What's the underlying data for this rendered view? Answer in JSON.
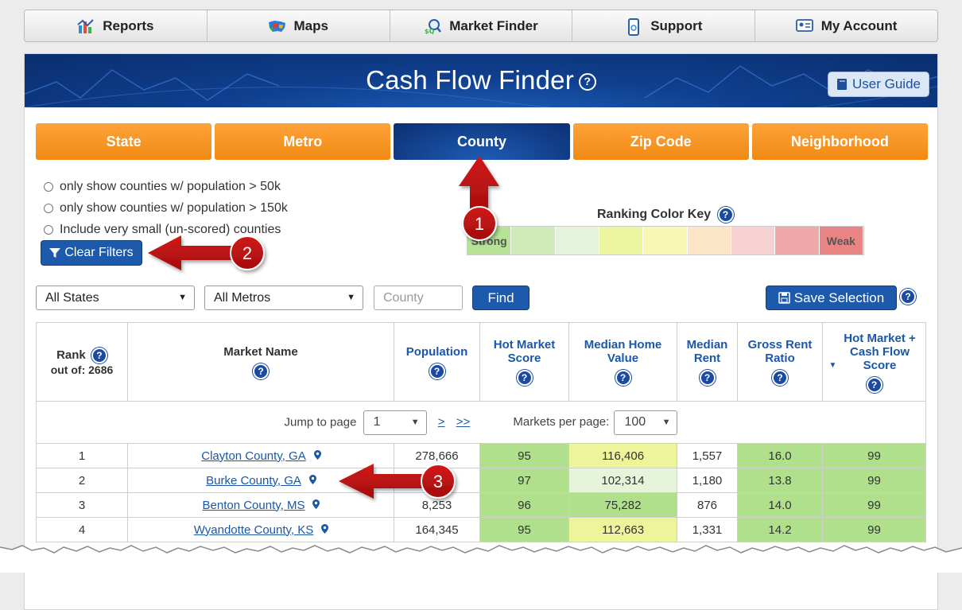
{
  "nav": {
    "items": [
      {
        "label": "Reports",
        "icon": "chart-icon"
      },
      {
        "label": "Maps",
        "icon": "usa-map-icon"
      },
      {
        "label": "Market Finder",
        "icon": "market-finder-icon"
      },
      {
        "label": "Support",
        "icon": "phone-icon"
      },
      {
        "label": "My Account",
        "icon": "id-card-icon"
      }
    ]
  },
  "banner": {
    "title": "Cash Flow Finder",
    "help": "?",
    "user_guide": "User Guide"
  },
  "tabs": [
    "State",
    "Metro",
    "County",
    "Zip Code",
    "Neighborhood"
  ],
  "active_tab": "County",
  "filters": {
    "options": [
      "only show counties w/ population > 50k",
      "only show counties w/ population > 150k",
      "Include very small (un-scored) counties"
    ],
    "clear_label": "Clear Filters"
  },
  "color_key": {
    "title": "Ranking Color Key",
    "strong": "Strong",
    "weak": "Weak",
    "colors": [
      "#b7e397",
      "#cfebb9",
      "#e4f3da",
      "#ecf5a0",
      "#f8f7b5",
      "#fbe5c6",
      "#f7d2d2",
      "#f0a9a9",
      "#e98585"
    ]
  },
  "controls": {
    "states": "All States",
    "metros": "All Metros",
    "county_placeholder": "County",
    "find": "Find",
    "save": "Save Selection"
  },
  "table": {
    "headers": {
      "rank": "Rank",
      "rank_sub": "out of: 2686",
      "market": "Market Name",
      "population": "Population",
      "hot_market": "Hot Market Score",
      "median_home": "Median Home Value",
      "median_rent": "Median Rent",
      "gross_rent": "Gross Rent Ratio",
      "cash_flow": "Hot Market + Cash Flow Score"
    },
    "jump_label": "Jump to page",
    "page_value": "1",
    "next": ">",
    "last": ">>",
    "per_page_label": "Markets per page:",
    "per_page_value": "100",
    "rows": [
      {
        "rank": "1",
        "name": "Clayton County, GA",
        "population": "278,666",
        "hot": "95",
        "home": "116,406",
        "rent": "1,557",
        "ratio": "16.0",
        "score": "99"
      },
      {
        "rank": "2",
        "name": "Burke County, GA",
        "population": "",
        "hot": "97",
        "home": "102,314",
        "rent": "1,180",
        "ratio": "13.8",
        "score": "99"
      },
      {
        "rank": "3",
        "name": "Benton County, MS",
        "population": "8,253",
        "hot": "96",
        "home": "75,282",
        "rent": "876",
        "ratio": "14.0",
        "score": "99"
      },
      {
        "rank": "4",
        "name": "Wyandotte County, KS",
        "population": "164,345",
        "hot": "95",
        "home": "112,663",
        "rent": "1,331",
        "ratio": "14.2",
        "score": "99"
      }
    ]
  },
  "annotations": [
    "1",
    "2",
    "3"
  ]
}
